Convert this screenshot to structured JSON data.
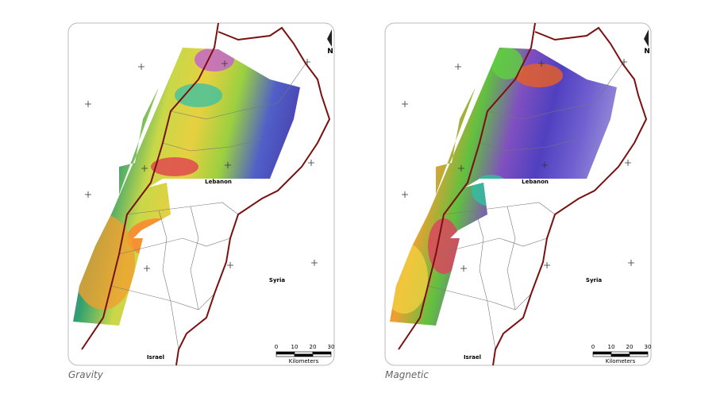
{
  "panels": [
    {
      "caption": "Gravity",
      "lebanon": "Lebanon",
      "syria": "Syria",
      "israel": "Israel",
      "north": "N",
      "scale_ticks": [
        "0",
        "10",
        "20",
        "30"
      ],
      "scale_unit": "Kilometers"
    },
    {
      "caption": "Magnetic",
      "lebanon": "Lebanon",
      "syria": "Syria",
      "israel": "Israel",
      "north": "N",
      "scale_ticks": [
        "0",
        "10",
        "20",
        "30"
      ],
      "scale_unit": "Kilometers"
    }
  ]
}
